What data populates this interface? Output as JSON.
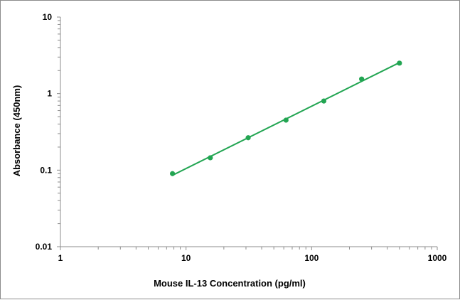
{
  "chart_data": {
    "type": "scatter",
    "title": "",
    "xlabel": "Mouse IL-13 Concentration (pg/ml)",
    "ylabel": "Absorbance (450nm)",
    "x_scale": "log",
    "y_scale": "log",
    "xlim": [
      1,
      1000
    ],
    "ylim": [
      0.01,
      10
    ],
    "x_tick_labels": [
      "1",
      "10",
      "100",
      "1000"
    ],
    "y_tick_labels": [
      "0.01",
      "0.1",
      "1",
      "10"
    ],
    "grid": false,
    "legend": "none",
    "series": [
      {
        "x": [
          7.8,
          15.6,
          31.25,
          62.5,
          125,
          250,
          500
        ],
        "y": [
          0.09,
          0.145,
          0.265,
          0.45,
          0.8,
          1.55,
          2.5
        ],
        "trendline": "power",
        "color": "#22a552"
      }
    ]
  }
}
